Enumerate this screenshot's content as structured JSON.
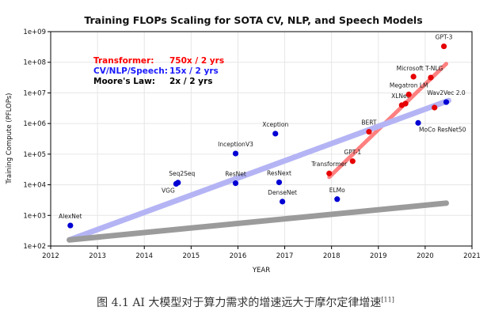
{
  "chart_data": {
    "type": "scatter",
    "title": "Training FLOPs Scaling for SOTA CV, NLP, and Speech Models",
    "xlabel": "YEAR",
    "ylabel": "Training Compute (PFLOPs)",
    "xlim": [
      2012,
      2021
    ],
    "ylim_log10": [
      2,
      9
    ],
    "x_ticks": [
      "2012",
      "2013",
      "2014",
      "2015",
      "2016",
      "2017",
      "2018",
      "2019",
      "2020",
      "2021"
    ],
    "y_ticks": [
      "1e+02",
      "1e+03",
      "1e+04",
      "1e+05",
      "1e+06",
      "1e+07",
      "1e+08",
      "1e+09"
    ],
    "legend": [
      {
        "label": "Transformer:",
        "value": "750x / 2 yrs",
        "color": "#ff0000"
      },
      {
        "label": "CV/NLP/Speech:",
        "value": "15x / 2 yrs",
        "color": "#1a1aff"
      },
      {
        "label": "Moore's Law:",
        "value": "2x / 2 yrs",
        "color": "#000000"
      }
    ],
    "trends": [
      {
        "name": "Transformer",
        "color": "#ff8080",
        "x": [
          2017.95,
          2020.45
        ],
        "log10y": [
          4.25,
          7.95
        ]
      },
      {
        "name": "CV/NLP/Speech",
        "color": "#b4b4f5",
        "x": [
          2012.4,
          2020.5
        ],
        "log10y": [
          2.2,
          6.75
        ]
      },
      {
        "name": "Moore's Law",
        "color": "#9b9b9b",
        "x": [
          2012.4,
          2020.45
        ],
        "log10y": [
          2.2,
          3.4
        ]
      }
    ],
    "series": [
      {
        "name": "CV/NLP/Speech",
        "color": "#0000d4",
        "points": [
          {
            "label": "AlexNet",
            "x": 2012.42,
            "log10y": 2.67
          },
          {
            "label": "VGG",
            "x": 2014.68,
            "log10y": 4.03
          },
          {
            "label": "Seq2Seq",
            "x": 2014.72,
            "log10y": 4.07
          },
          {
            "label": "ResNet",
            "x": 2015.95,
            "log10y": 4.05
          },
          {
            "label": "InceptionV3",
            "x": 2015.95,
            "log10y": 5.02
          },
          {
            "label": "Xception",
            "x": 2016.8,
            "log10y": 5.67
          },
          {
            "label": "ResNext",
            "x": 2016.88,
            "log10y": 4.08
          },
          {
            "label": "DenseNet",
            "x": 2016.95,
            "log10y": 3.45
          },
          {
            "label": "ELMo",
            "x": 2018.12,
            "log10y": 3.53
          },
          {
            "label": "MoCo ResNet50",
            "x": 2019.85,
            "log10y": 6.02
          },
          {
            "label": "Wav2Vec 2.0",
            "x": 2020.45,
            "log10y": 6.7
          }
        ]
      },
      {
        "name": "Transformer",
        "color": "#e60000",
        "points": [
          {
            "label": "Transformer",
            "x": 2017.95,
            "log10y": 4.37
          },
          {
            "label": "GPT-1",
            "x": 2018.45,
            "log10y": 4.77
          },
          {
            "label": "BERT",
            "x": 2018.8,
            "log10y": 5.73
          },
          {
            "label": "XLNet",
            "x": 2019.5,
            "log10y": 6.6
          },
          {
            "label": "",
            "x": 2019.58,
            "log10y": 6.65
          },
          {
            "label": "Megatron LM",
            "x": 2019.65,
            "log10y": 6.95
          },
          {
            "label": "",
            "x": 2019.75,
            "log10y": 7.53
          },
          {
            "label": "Microsoft T-NLG",
            "x": 2020.12,
            "log10y": 7.5
          },
          {
            "label": "",
            "x": 2020.2,
            "log10y": 6.52
          },
          {
            "label": "GPT-3",
            "x": 2020.4,
            "log10y": 8.52
          }
        ]
      }
    ]
  },
  "caption": {
    "text": "图 4.1 AI 大模型对于算力需求的增速远大于摩尔定律增速",
    "ref": "[11]"
  }
}
